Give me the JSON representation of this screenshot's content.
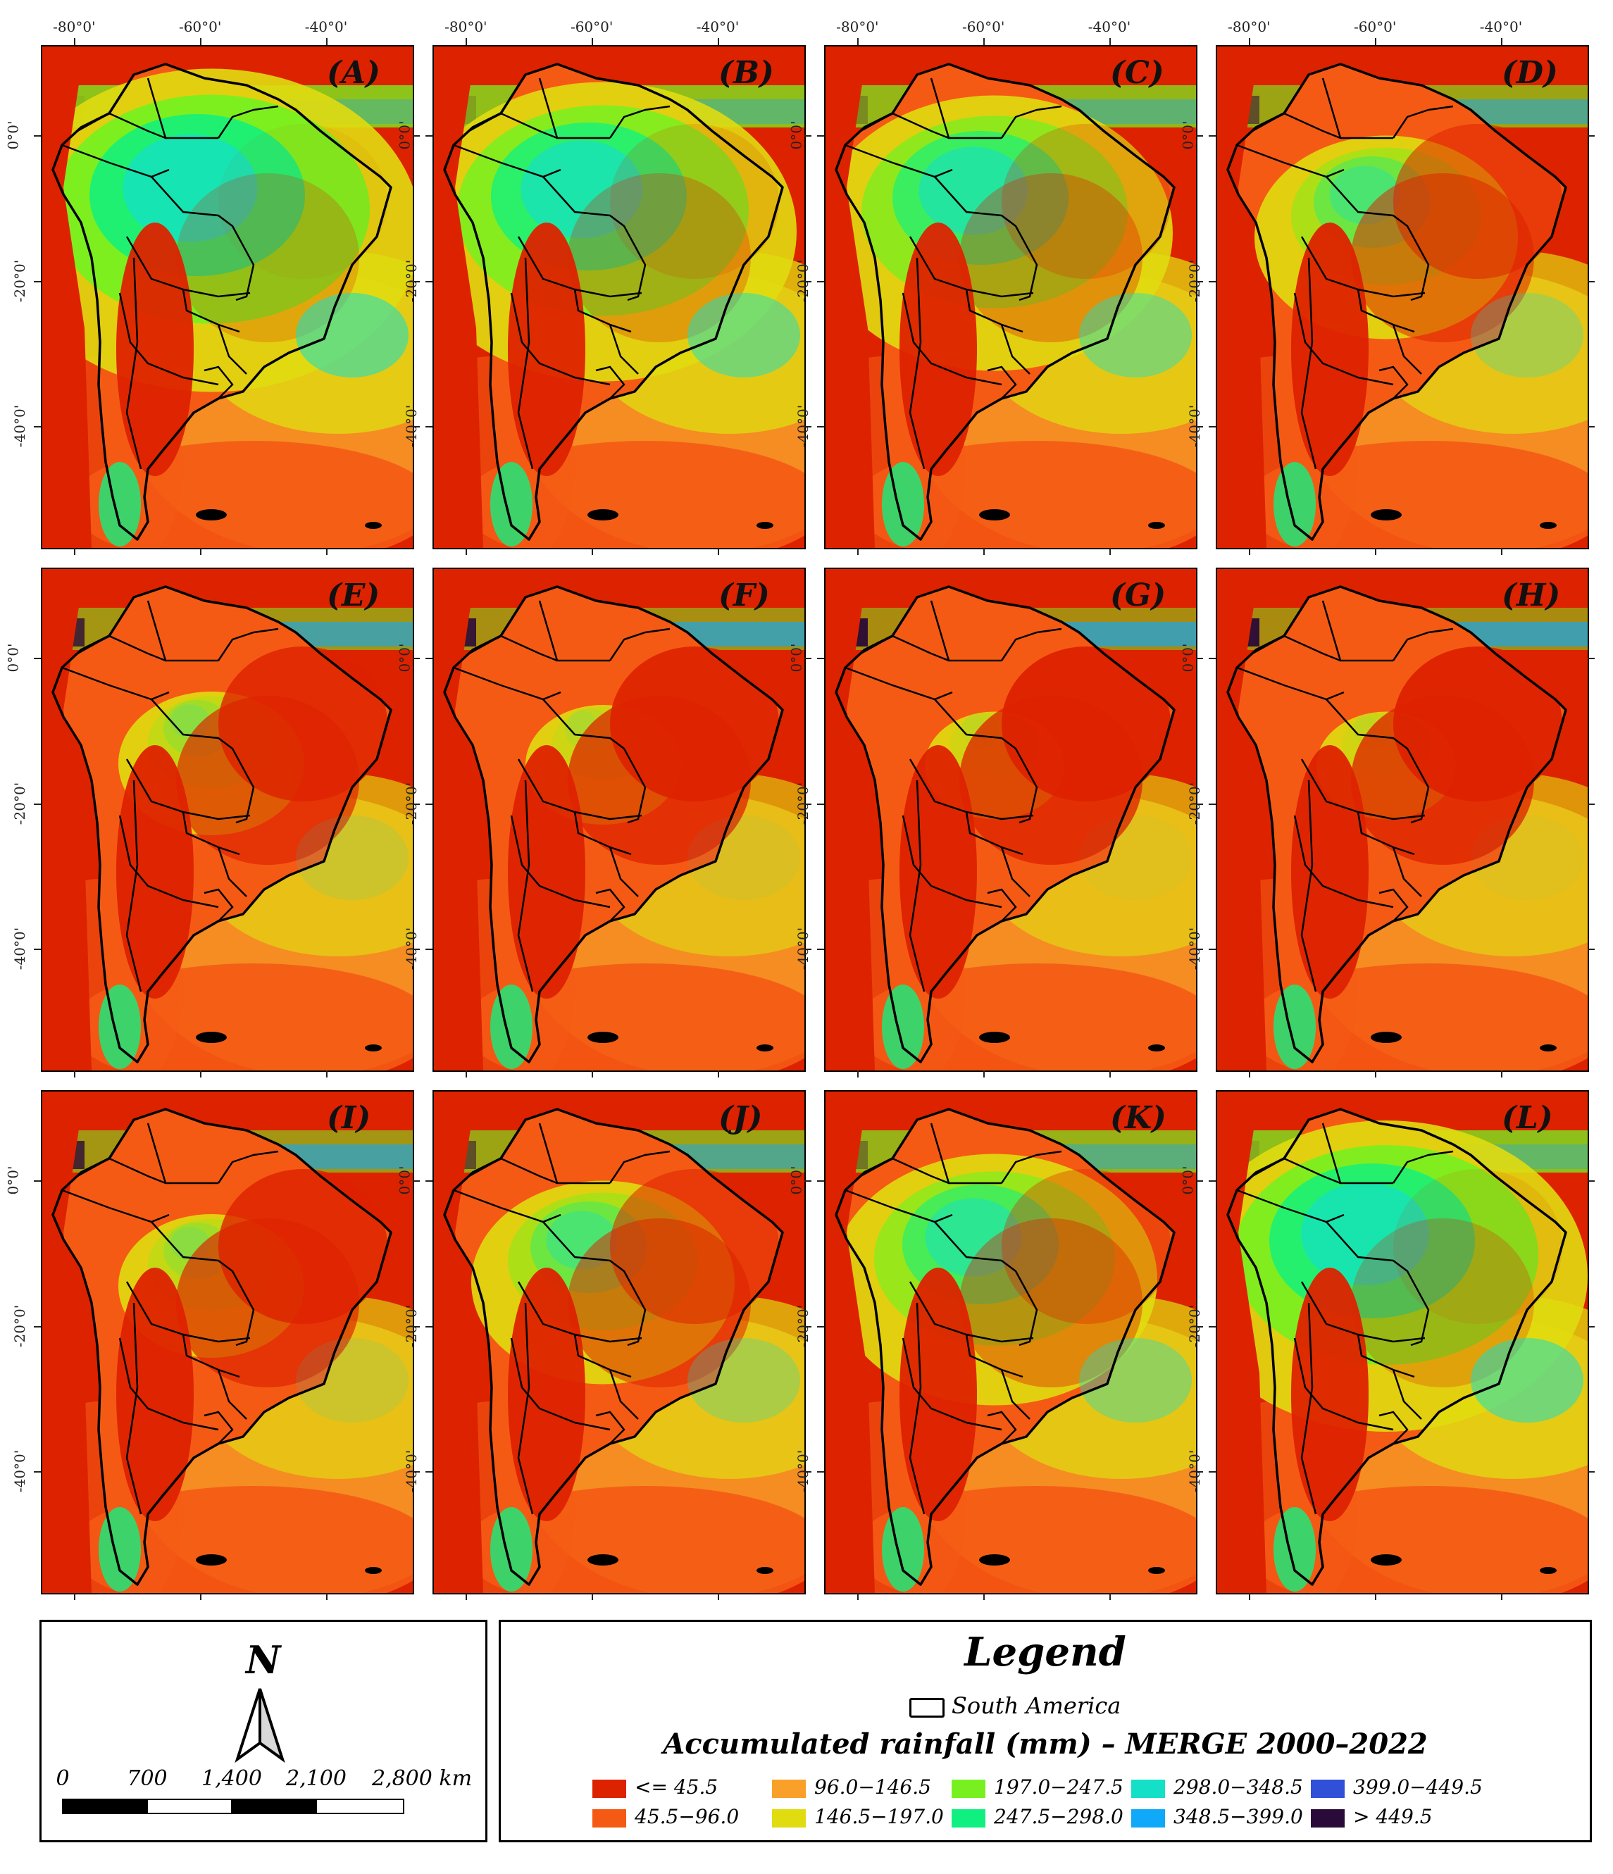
{
  "map": {
    "x_ticks": [
      "-80°0'",
      "-60°0'",
      "-40°0'"
    ],
    "y_ticks": [
      "0°0'",
      "-20°0'",
      "-40°0'"
    ],
    "panels": [
      {
        "label": "(A)",
        "wet": 0.95
      },
      {
        "label": "(B)",
        "wet": 0.85
      },
      {
        "label": "(C)",
        "wet": 0.75
      },
      {
        "label": "(D)",
        "wet": 0.45
      },
      {
        "label": "(E)",
        "wet": 0.2
      },
      {
        "label": "(F)",
        "wet": 0.1
      },
      {
        "label": "(G)",
        "wet": 0.05
      },
      {
        "label": "(H)",
        "wet": 0.05
      },
      {
        "label": "(I)",
        "wet": 0.2
      },
      {
        "label": "(J)",
        "wet": 0.45
      },
      {
        "label": "(K)",
        "wet": 0.65
      },
      {
        "label": "(L)",
        "wet": 0.9
      }
    ]
  },
  "north_arrow": {
    "letter": "N"
  },
  "scale_bar": {
    "labels": [
      "0",
      "700",
      "1,400",
      "2,100",
      "2,800 km"
    ]
  },
  "legend": {
    "title": "Legend",
    "boundary_label": "South America",
    "subtitle": "Accumulated rainfall (mm) – MERGE 2000–2022",
    "classes": [
      {
        "label": "<= 45.5",
        "color": "#dd2200"
      },
      {
        "label": "45.5−96.0",
        "color": "#f55a14"
      },
      {
        "label": "96.0−146.5",
        "color": "#f9a028"
      },
      {
        "label": "146.5−197.0",
        "color": "#e0dc10"
      },
      {
        "label": "197.0−247.5",
        "color": "#78f020"
      },
      {
        "label": "247.5−298.0",
        "color": "#10f080"
      },
      {
        "label": "298.0−348.5",
        "color": "#14e0c8"
      },
      {
        "label": "348.5−399.0",
        "color": "#10a8f8"
      },
      {
        "label": "399.0−449.5",
        "color": "#3050d8"
      },
      {
        "label": "> 449.5",
        "color": "#2a0a38"
      }
    ]
  }
}
